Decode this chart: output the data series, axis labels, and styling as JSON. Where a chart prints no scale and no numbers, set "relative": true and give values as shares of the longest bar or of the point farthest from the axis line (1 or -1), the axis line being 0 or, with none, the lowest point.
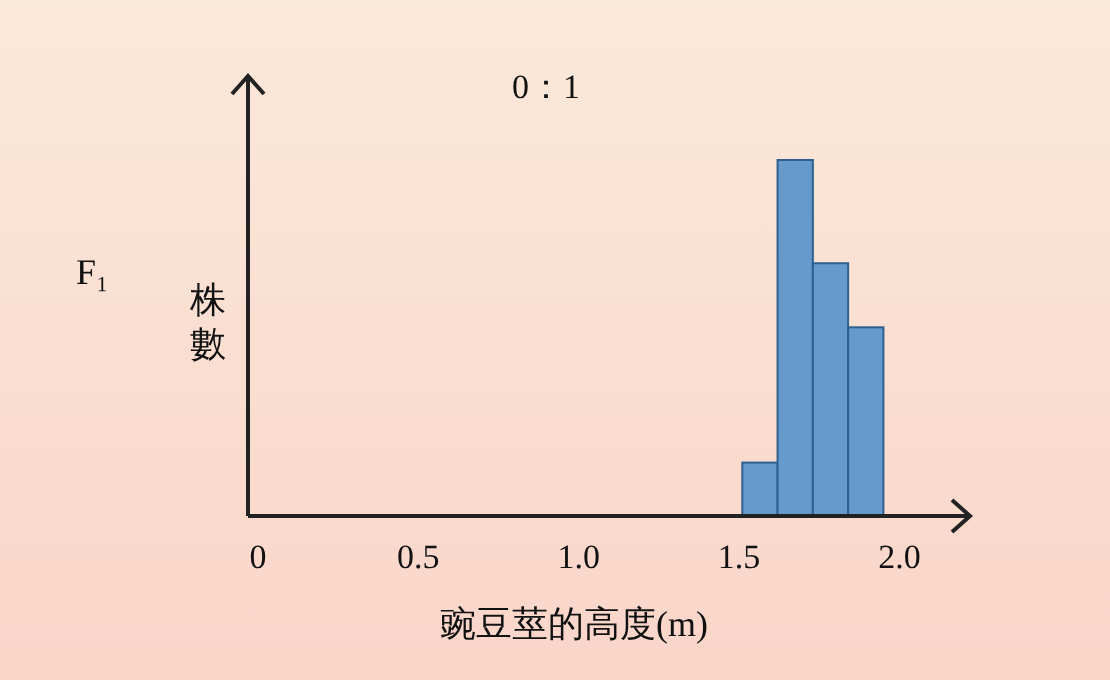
{
  "chart_data": {
    "type": "bar",
    "title": "0：1",
    "xlabel": "豌豆莖的高度(m)",
    "ylabel": "株數",
    "annotations": [
      "F₁"
    ],
    "relative": true,
    "x": [
      1.565,
      1.675,
      1.785,
      1.895
    ],
    "values": [
      0.15,
      1,
      0.71,
      0.53
    ],
    "color": "#6699cc",
    "xlim": [
      0,
      2.22
    ],
    "xticks": [
      {
        "value": 0,
        "label": "0"
      },
      {
        "value": 0.5,
        "label": "0.5"
      },
      {
        "value": 1,
        "label": "1.0"
      },
      {
        "value": 1.5,
        "label": "1.5"
      },
      {
        "value": 2,
        "label": "2.0"
      }
    ]
  }
}
